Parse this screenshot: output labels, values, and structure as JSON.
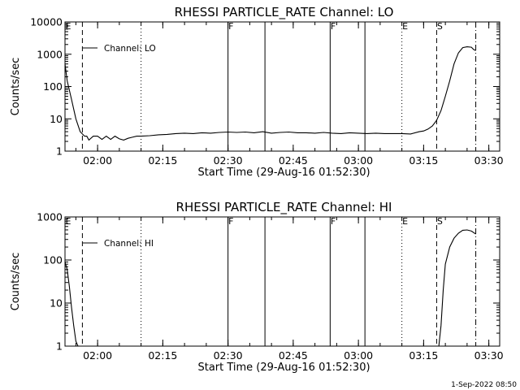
{
  "footer_stamp": "1-Sep-2022 08:50",
  "chart_data": [
    {
      "type": "line",
      "title": "RHESSI PARTICLE_RATE Channel: LO",
      "xlabel": "Start Time (29-Aug-16 01:52:30)",
      "ylabel": "Counts/sec",
      "yscale": "log",
      "xlim": [
        "01:52:30",
        "03:32:30"
      ],
      "ylim": [
        1,
        10000
      ],
      "x_ticks": [
        "02:00",
        "02:15",
        "02:30",
        "02:45",
        "03:00",
        "03:15",
        "03:30"
      ],
      "y_ticks": [
        "1",
        "10",
        "100",
        "1000",
        "10000"
      ],
      "legend": {
        "label": "Channel: LO",
        "position": "top-left"
      },
      "event_markers": [
        {
          "label": "E",
          "time": "01:52:30",
          "style": "none"
        },
        {
          "label": "",
          "time": "01:56:30",
          "style": "dashed"
        },
        {
          "label": "",
          "time": "02:10:00",
          "style": "dotted"
        },
        {
          "label": "F",
          "time": "02:30:00",
          "style": "solid"
        },
        {
          "label": "",
          "time": "02:38:30",
          "style": "solid"
        },
        {
          "label": "F",
          "time": "02:53:30",
          "style": "solid"
        },
        {
          "label": "",
          "time": "03:01:30",
          "style": "solid"
        },
        {
          "label": "E",
          "time": "03:10:00",
          "style": "dotted"
        },
        {
          "label": "S",
          "time": "03:18:00",
          "style": "dashed"
        },
        {
          "label": "",
          "time": "03:27:00",
          "style": "dashdot"
        }
      ],
      "series": [
        {
          "name": "Channel: LO",
          "x": [
            "01:52:30",
            "01:53:00",
            "01:54:00",
            "01:55:00",
            "01:56:00",
            "01:57:00",
            "01:57:30",
            "01:58:00",
            "01:59:00",
            "02:00:00",
            "02:01:00",
            "02:02:00",
            "02:03:00",
            "02:04:00",
            "02:05:00",
            "02:06:00",
            "02:07:00",
            "02:08:00",
            "02:09:00",
            "02:10:00",
            "02:12:00",
            "02:14:00",
            "02:16:00",
            "02:18:00",
            "02:20:00",
            "02:22:00",
            "02:24:00",
            "02:26:00",
            "02:28:00",
            "02:30:00",
            "02:32:00",
            "02:34:00",
            "02:36:00",
            "02:38:00",
            "02:40:00",
            "02:42:00",
            "02:44:00",
            "02:46:00",
            "02:48:00",
            "02:50:00",
            "02:52:00",
            "02:54:00",
            "02:56:00",
            "02:58:00",
            "03:00:00",
            "03:02:00",
            "03:04:00",
            "03:06:00",
            "03:08:00",
            "03:10:00",
            "03:12:00",
            "03:14:00",
            "03:15:00",
            "03:16:00",
            "03:17:00",
            "03:18:00",
            "03:19:00",
            "03:20:00",
            "03:21:00",
            "03:22:00",
            "03:23:00",
            "03:24:00",
            "03:25:00",
            "03:26:00",
            "03:26:30",
            "03:27:00"
          ],
          "y": [
            500,
            150,
            40,
            10,
            4,
            2.9,
            2.9,
            2.2,
            2.9,
            2.9,
            2.3,
            2.9,
            2.3,
            2.9,
            2.4,
            2.2,
            2.5,
            2.7,
            2.9,
            2.9,
            3.0,
            3.2,
            3.3,
            3.5,
            3.6,
            3.5,
            3.7,
            3.6,
            3.8,
            3.9,
            3.8,
            3.9,
            3.7,
            4.0,
            3.6,
            3.8,
            3.9,
            3.7,
            3.7,
            3.6,
            3.8,
            3.6,
            3.5,
            3.7,
            3.6,
            3.5,
            3.6,
            3.5,
            3.5,
            3.5,
            3.4,
            4.0,
            4.2,
            4.8,
            6,
            9,
            18,
            50,
            150,
            500,
            1100,
            1600,
            1700,
            1650,
            1400,
            1300
          ]
        }
      ]
    },
    {
      "type": "line",
      "title": "RHESSI PARTICLE_RATE Channel: HI",
      "xlabel": "Start Time (29-Aug-16 01:52:30)",
      "ylabel": "Counts/sec",
      "yscale": "log",
      "xlim": [
        "01:52:30",
        "03:32:30"
      ],
      "ylim": [
        1,
        1000
      ],
      "x_ticks": [
        "02:00",
        "02:15",
        "02:30",
        "02:45",
        "03:00",
        "03:15",
        "03:30"
      ],
      "y_ticks": [
        "1",
        "10",
        "100",
        "1000"
      ],
      "legend": {
        "label": "Channel: HI",
        "position": "top-left"
      },
      "event_markers": [
        {
          "label": "E",
          "time": "01:52:30",
          "style": "none"
        },
        {
          "label": "",
          "time": "01:56:30",
          "style": "dashed"
        },
        {
          "label": "",
          "time": "02:10:00",
          "style": "dotted"
        },
        {
          "label": "F",
          "time": "02:30:00",
          "style": "solid"
        },
        {
          "label": "",
          "time": "02:38:30",
          "style": "solid"
        },
        {
          "label": "F",
          "time": "02:53:30",
          "style": "solid"
        },
        {
          "label": "",
          "time": "03:01:30",
          "style": "solid"
        },
        {
          "label": "E",
          "time": "03:10:00",
          "style": "dotted"
        },
        {
          "label": "S",
          "time": "03:18:00",
          "style": "dashed"
        },
        {
          "label": "",
          "time": "03:27:00",
          "style": "dashdot"
        }
      ],
      "series": [
        {
          "name": "Channel: HI",
          "x": [
            "01:52:30",
            "01:53:00",
            "01:53:30",
            "01:54:00",
            "01:54:30",
            "01:55:00",
            "01:55:30",
            "03:18:30",
            "03:19:00",
            "03:19:30",
            "03:20:00",
            "03:21:00",
            "03:22:00",
            "03:23:00",
            "03:24:00",
            "03:25:00",
            "03:26:00",
            "03:27:00"
          ],
          "y": [
            90,
            60,
            25,
            8,
            3,
            1.3,
            1,
            1,
            3,
            20,
            80,
            200,
            320,
            420,
            490,
            500,
            470,
            400
          ]
        }
      ]
    }
  ]
}
